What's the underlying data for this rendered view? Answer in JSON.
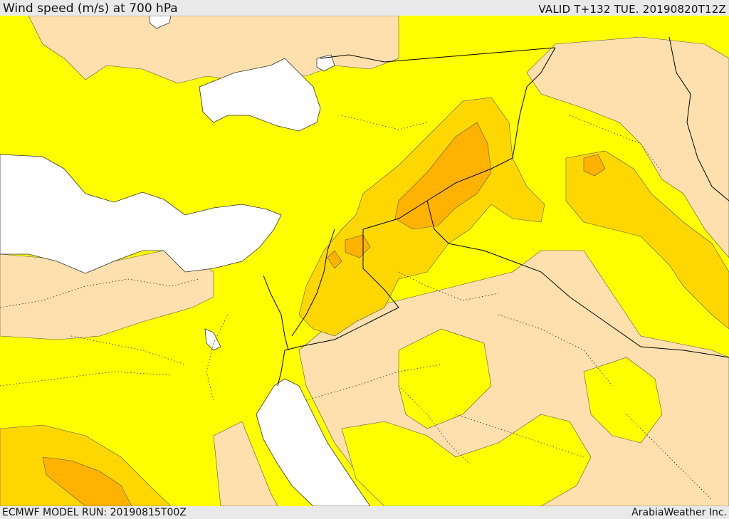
{
  "header": {
    "title": "Wind speed (m/s) at 700 hPa",
    "valid": "VALID T+132 TUE. 20190820T12Z"
  },
  "footer": {
    "model_run": "ECMWF MODEL RUN: 20190815T00Z",
    "credit": "ArabiaWeather Inc."
  },
  "colors": {
    "sea": "#ffffff",
    "band_light": "#fde0ad",
    "band_yellow": "#ffff00",
    "band_gold": "#ffd700",
    "band_orange": "#ffb300",
    "border": "#000000"
  }
}
